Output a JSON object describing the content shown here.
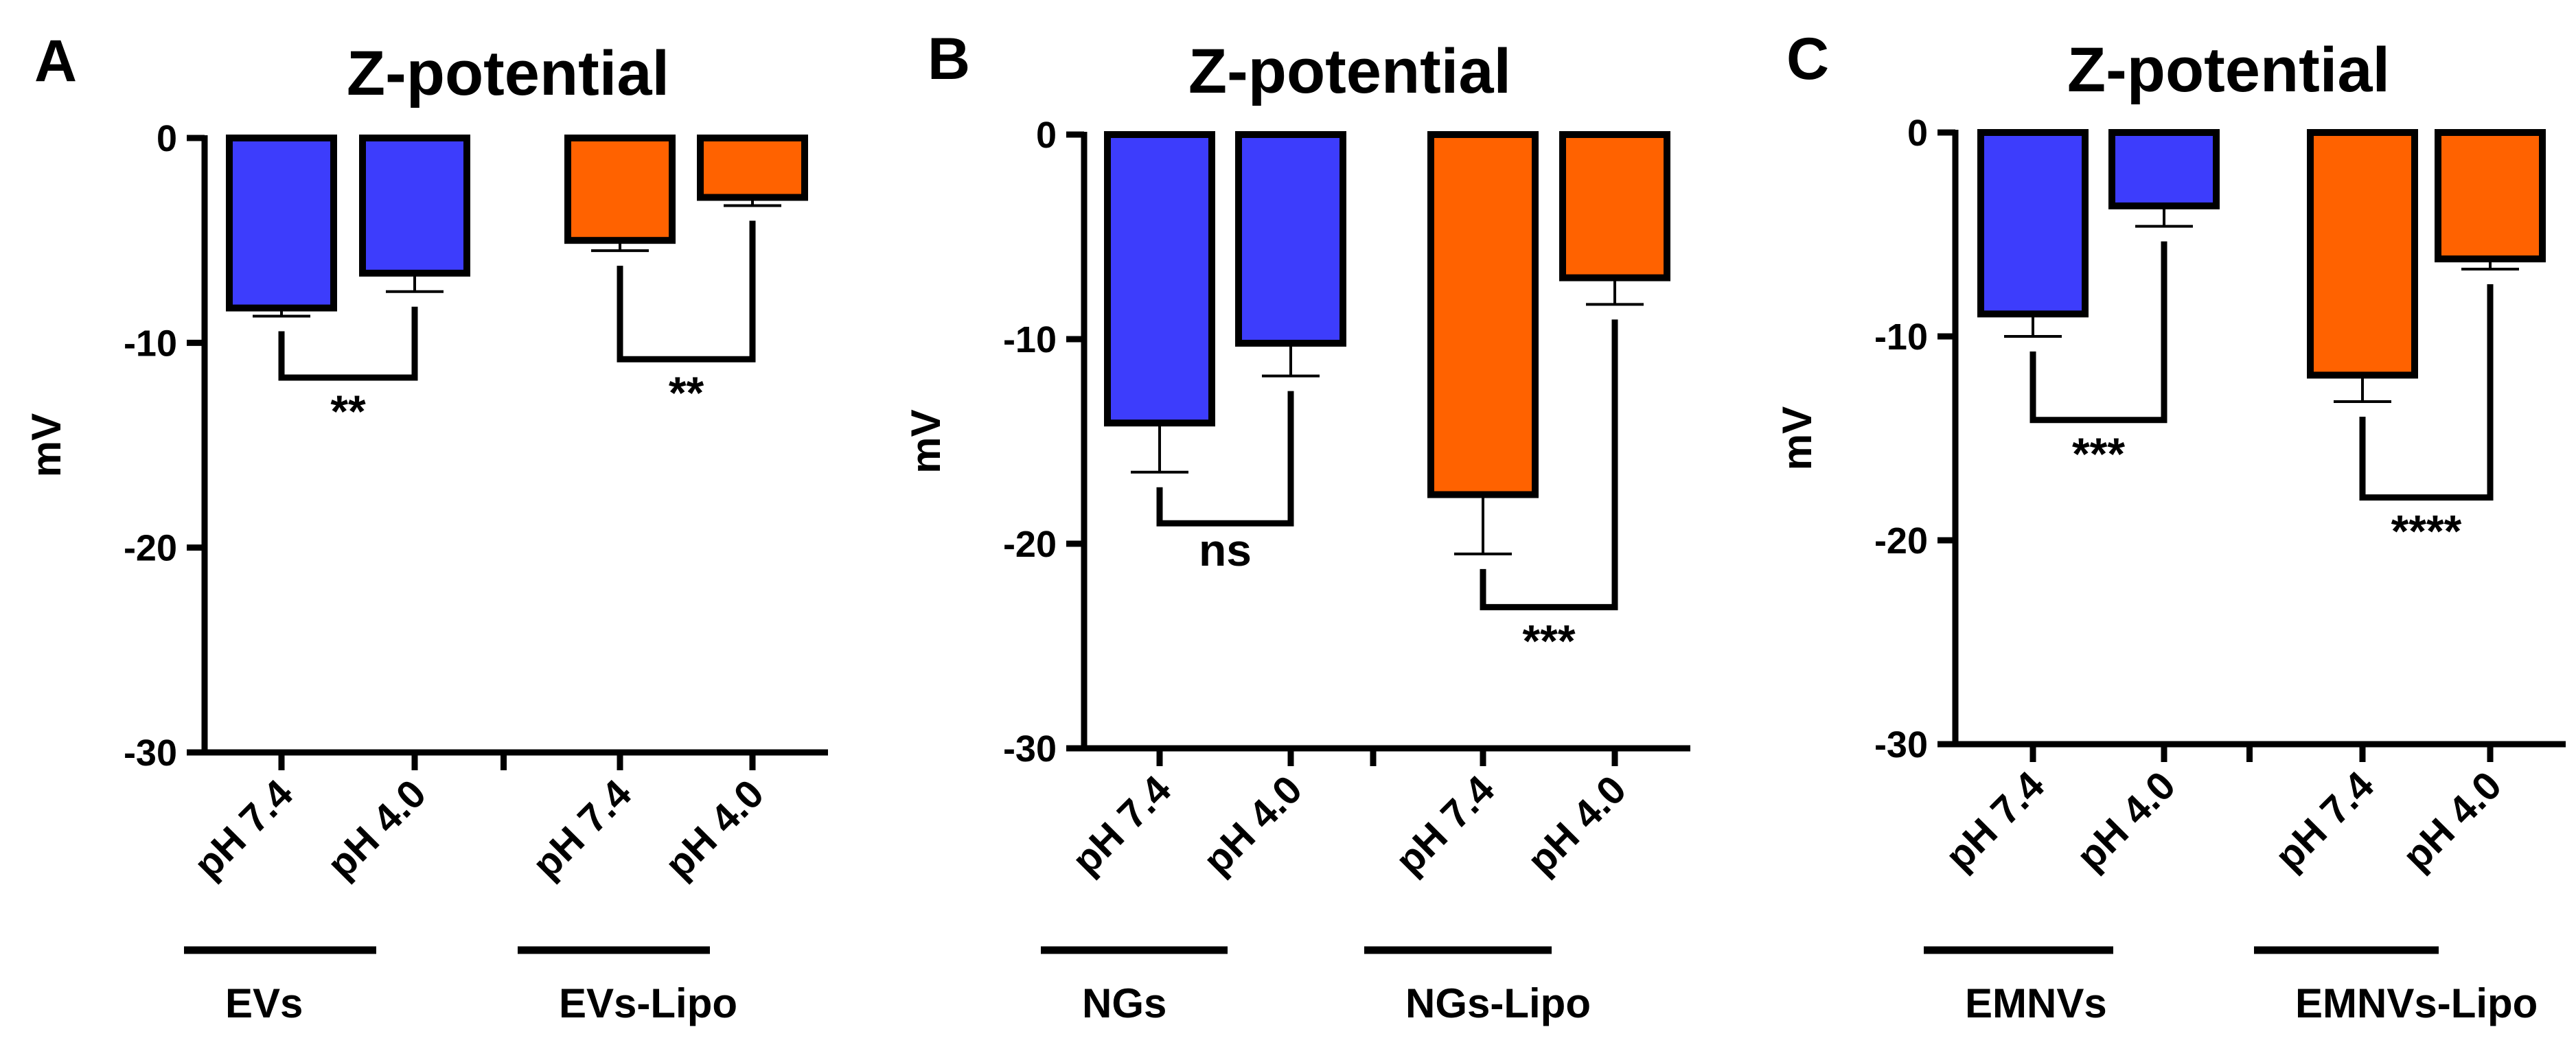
{
  "colors": {
    "blue": "#3d3dfc",
    "orange": "#ff6200",
    "black": "#000000"
  },
  "chart_data": [
    {
      "type": "bar",
      "panel": "A",
      "title": "Z-potential",
      "ylabel": "mV",
      "xlabel": "",
      "ylim": [
        -30,
        0
      ],
      "yticks": [
        0,
        -10,
        -20,
        -30
      ],
      "ytick_labels": [
        "0",
        "-10",
        "-20",
        "-30"
      ],
      "categories": [
        "pH 7.4",
        "pH 4.0",
        "pH 7.4",
        "pH 4.0"
      ],
      "groups": [
        {
          "label": "EVs",
          "bars": [
            0,
            1
          ]
        },
        {
          "label": "EVs-Lipo",
          "bars": [
            2,
            3
          ]
        }
      ],
      "values": [
        -8.3,
        -6.6,
        -5.0,
        -2.9
      ],
      "errors": [
        0.4,
        0.9,
        0.5,
        0.4
      ],
      "bar_colors": [
        "blue",
        "blue",
        "orange",
        "orange"
      ],
      "significance": [
        {
          "bars": [
            0,
            1
          ],
          "level": -11.7,
          "label": "**"
        },
        {
          "bars": [
            2,
            3
          ],
          "level": -10.8,
          "label": "**"
        }
      ],
      "grid": false,
      "legend": "none"
    },
    {
      "type": "bar",
      "panel": "B",
      "title": "Z-potential",
      "ylabel": "mV",
      "xlabel": "",
      "ylim": [
        -30,
        0
      ],
      "yticks": [
        0,
        -10,
        -20,
        -30
      ],
      "ytick_labels": [
        "0",
        "-10",
        "-20",
        "-30"
      ],
      "categories": [
        "pH 7.4",
        "pH 4.0",
        "pH 7.4",
        "pH 4.0"
      ],
      "groups": [
        {
          "label": "NGs",
          "bars": [
            0,
            1
          ]
        },
        {
          "label": "NGs-Lipo",
          "bars": [
            2,
            3
          ]
        }
      ],
      "values": [
        -14.1,
        -10.2,
        -17.6,
        -7.0
      ],
      "errors": [
        2.4,
        1.6,
        2.9,
        1.3
      ],
      "bar_colors": [
        "blue",
        "blue",
        "orange",
        "orange"
      ],
      "significance": [
        {
          "bars": [
            0,
            1
          ],
          "level": -19.0,
          "label": "ns"
        },
        {
          "bars": [
            2,
            3
          ],
          "level": -23.1,
          "label": "***"
        }
      ],
      "grid": false,
      "legend": "none"
    },
    {
      "type": "bar",
      "panel": "C",
      "title": "Z-potential",
      "ylabel": "mV",
      "xlabel": "",
      "ylim": [
        -30,
        0
      ],
      "yticks": [
        0,
        -10,
        -20,
        -30
      ],
      "ytick_labels": [
        "0",
        "-10",
        "-20",
        "-30"
      ],
      "categories": [
        "pH 7.4",
        "pH 4.0",
        "pH 7.4",
        "pH 4.0"
      ],
      "groups": [
        {
          "label": "EMNVs",
          "bars": [
            0,
            1
          ]
        },
        {
          "label": "EMNVs-Lipo",
          "bars": [
            2,
            3
          ]
        }
      ],
      "values": [
        -8.9,
        -3.6,
        -11.9,
        -6.2
      ],
      "errors": [
        1.1,
        1.0,
        1.3,
        0.5
      ],
      "bar_colors": [
        "blue",
        "blue",
        "orange",
        "orange"
      ],
      "significance": [
        {
          "bars": [
            0,
            1
          ],
          "level": -14.1,
          "label": "***"
        },
        {
          "bars": [
            2,
            3
          ],
          "level": -17.9,
          "label": "****"
        }
      ],
      "grid": false,
      "legend": "none"
    }
  ]
}
